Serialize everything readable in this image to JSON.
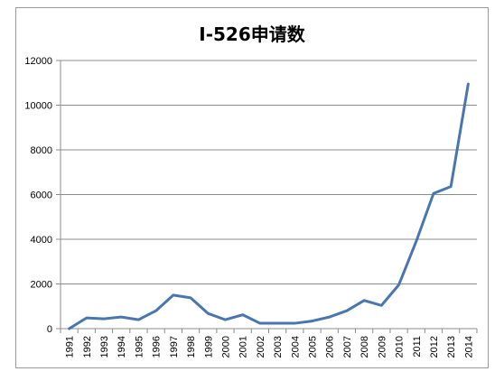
{
  "chart_data": {
    "type": "line",
    "title": "I-526申请数",
    "xlabel": "",
    "ylabel": "",
    "categories": [
      "1991",
      "1992",
      "1993",
      "1994",
      "1995",
      "1996",
      "1997",
      "1998",
      "1999",
      "2000",
      "2001",
      "2002",
      "2003",
      "2004",
      "2005",
      "2006",
      "2007",
      "2008",
      "2009",
      "2010",
      "2011",
      "2012",
      "2013",
      "2014"
    ],
    "series": [
      {
        "color": "#4a76b0",
        "values": [
          0,
          480,
          440,
          520,
          400,
          800,
          1500,
          1380,
          680,
          400,
          620,
          240,
          240,
          240,
          340,
          520,
          800,
          1260,
          1040,
          1960,
          3900,
          6050,
          6360,
          10950
        ]
      }
    ],
    "ylim": [
      0,
      12000
    ],
    "yticks": [
      0,
      2000,
      4000,
      6000,
      8000,
      10000,
      12000
    ],
    "grid": true,
    "legend": "none"
  }
}
